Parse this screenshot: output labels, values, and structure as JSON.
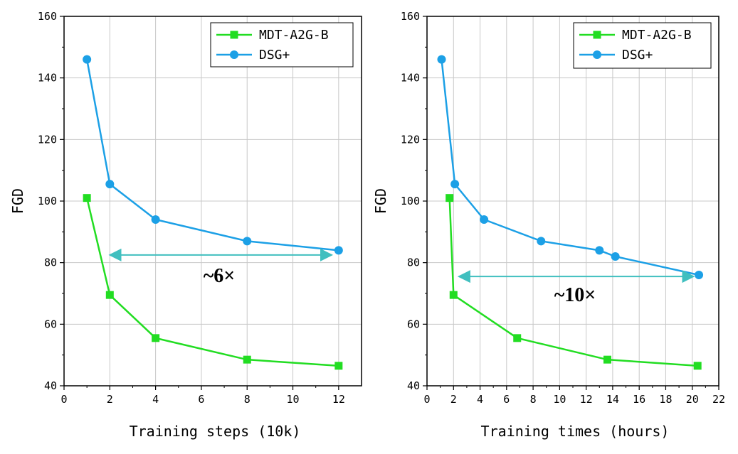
{
  "chart_data": [
    {
      "type": "line",
      "xlabel": "Training steps (10k)",
      "ylabel": "FGD",
      "xlim": [
        0,
        13
      ],
      "ylim": [
        40,
        160
      ],
      "xticks": [
        0,
        2,
        4,
        6,
        8,
        10,
        12
      ],
      "yticks": [
        40,
        60,
        80,
        100,
        120,
        140,
        160
      ],
      "grid": true,
      "legend_position": "top-right",
      "series": [
        {
          "name": "MDT-A2G-B",
          "color": "#22dd22",
          "marker": "square",
          "x": [
            1,
            2,
            4,
            8,
            12
          ],
          "y": [
            101,
            69.5,
            55.5,
            48.5,
            46.5
          ]
        },
        {
          "name": "DSG+",
          "color": "#1ca0e6",
          "marker": "circle",
          "x": [
            1,
            2,
            4,
            8,
            12
          ],
          "y": [
            146,
            105.5,
            94,
            87,
            84
          ]
        }
      ],
      "annotation": {
        "text": "~6×",
        "arrow_from": [
          2,
          82.5
        ],
        "arrow_to": [
          11.7,
          82.5
        ]
      }
    },
    {
      "type": "line",
      "xlabel": "Training times (hours)",
      "ylabel": "FGD",
      "xlim": [
        0,
        22
      ],
      "ylim": [
        40,
        160
      ],
      "xticks": [
        0,
        2,
        4,
        6,
        8,
        10,
        12,
        14,
        16,
        18,
        20,
        22
      ],
      "yticks": [
        40,
        60,
        80,
        100,
        120,
        140,
        160
      ],
      "grid": true,
      "legend_position": "top-right",
      "series": [
        {
          "name": "MDT-A2G-B",
          "color": "#22dd22",
          "marker": "square",
          "x": [
            1.7,
            2.0,
            6.8,
            13.6,
            20.4
          ],
          "y": [
            101,
            69.5,
            55.5,
            48.5,
            46.5
          ]
        },
        {
          "name": "DSG+",
          "color": "#1ca0e6",
          "marker": "circle",
          "x": [
            1.1,
            2.1,
            4.3,
            8.6,
            13.0,
            14.2,
            20.5
          ],
          "y": [
            146,
            105.5,
            94,
            87,
            84,
            82,
            76
          ]
        }
      ],
      "annotation": {
        "text": "~10×",
        "arrow_from": [
          2.4,
          75.5
        ],
        "arrow_to": [
          20.1,
          75.5
        ]
      }
    }
  ]
}
